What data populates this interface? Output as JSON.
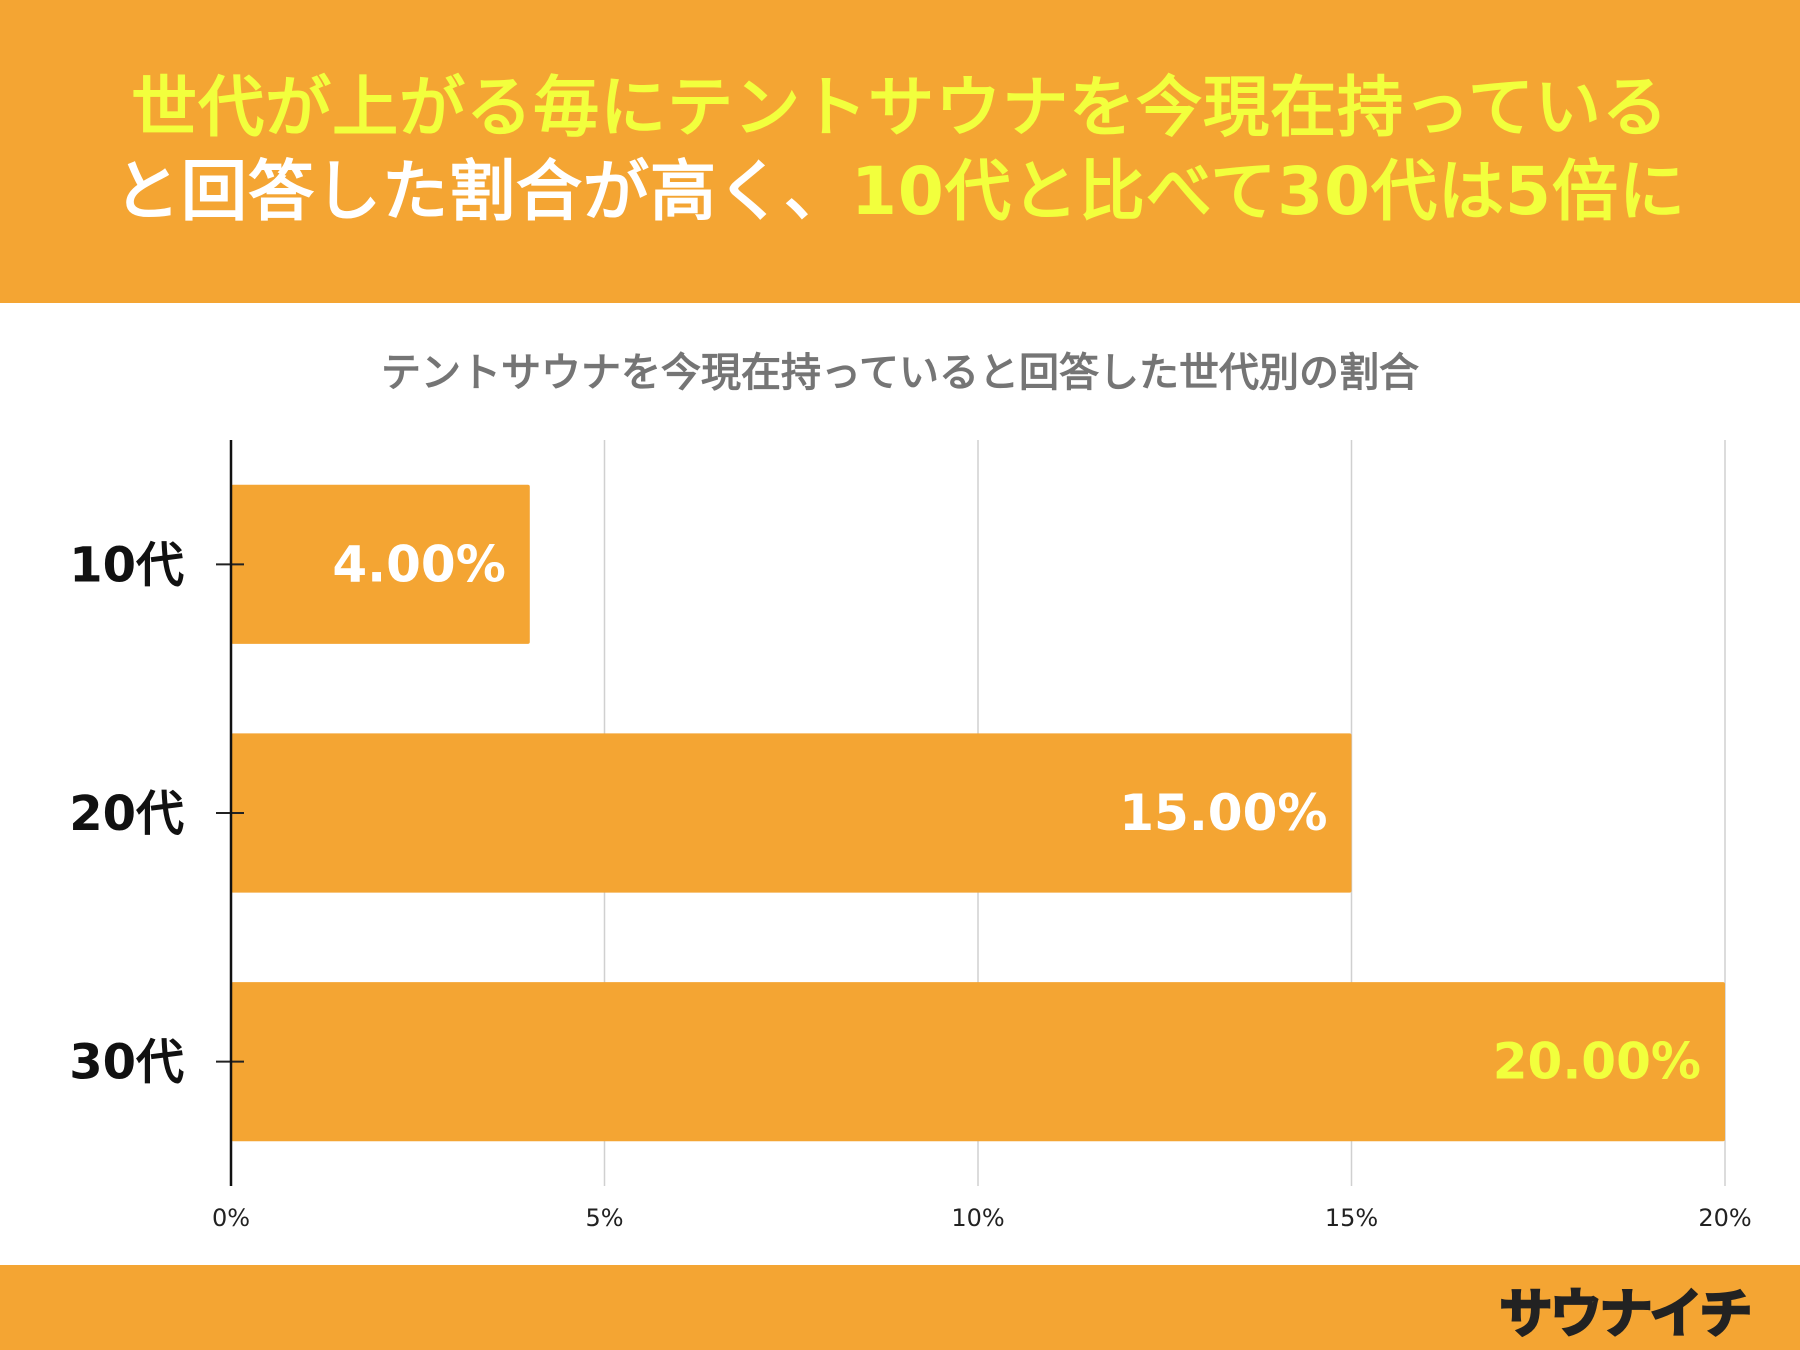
{
  "headline": {
    "line1_parts": [
      {
        "text": "世代が上がる毎にテントサウナを今現在持っている",
        "color": "yellow"
      }
    ],
    "line2_parts": [
      {
        "text": "と回答した割合が高く、",
        "color": "white"
      },
      {
        "text": "10代と比べて30代は5倍に",
        "color": "yellow"
      }
    ]
  },
  "brand": {
    "logo_text": "サウナイチ",
    "colors": {
      "orange": "#f4a533",
      "yellow": "#f2ff3d",
      "white": "#ffffff"
    }
  },
  "chart_data": {
    "type": "bar",
    "orientation": "horizontal",
    "title": "テントサウナを今現在持っていると回答した世代別の割合",
    "categories": [
      "10代",
      "20代",
      "30代"
    ],
    "values": [
      4.0,
      15.0,
      20.0
    ],
    "value_labels": [
      "4.00%",
      "15.00%",
      "20.00%"
    ],
    "value_label_colors": [
      "#ffffff",
      "#ffffff",
      "#f2ff3d"
    ],
    "xlim": [
      0,
      20
    ],
    "xticks": [
      0,
      5,
      10,
      15,
      20
    ],
    "xtick_labels": [
      "0%",
      "5%",
      "10%",
      "15%",
      "20%"
    ],
    "bar_color": "#f4a533",
    "grid": true,
    "legend": "none"
  }
}
